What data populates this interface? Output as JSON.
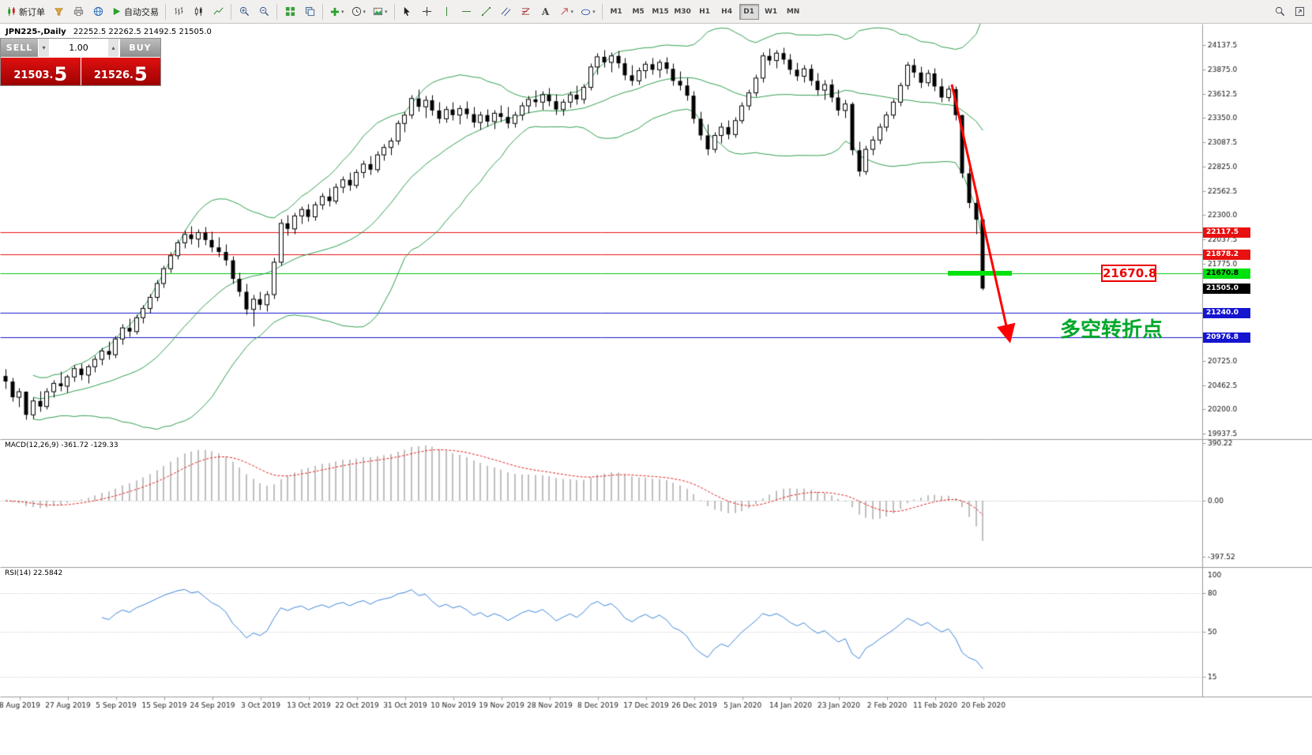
{
  "toolbar": {
    "new_order_label": "新订单",
    "autotrading_label": "自动交易",
    "timeframes": [
      "M1",
      "M5",
      "M15",
      "M30",
      "H1",
      "H4",
      "D1",
      "W1",
      "MN"
    ],
    "active_timeframe": "D1"
  },
  "chart": {
    "title": "JPN225-,Daily",
    "ohlc": "22252.5 22262.5 21492.5 21505.0"
  },
  "order_panel": {
    "sell_label": "SELL",
    "buy_label": "BUY",
    "volume": "1.00",
    "sell_price_base": "21503.",
    "sell_price_big": "5",
    "buy_price_base": "21526.",
    "buy_price_big": "5"
  },
  "annotations": {
    "level_label": "21670.8",
    "turning_point_text": "多空转折点"
  },
  "indicators": {
    "macd_name": "MACD(12,26,9)",
    "macd_values": "-361.72 -129.33",
    "rsi_name": "RSI(14)",
    "rsi_value": "22.5842"
  },
  "chart_data": {
    "type": "candlestick",
    "symbol": "JPN225-",
    "timeframe": "Daily",
    "ohlc_current": {
      "open": 22252.5,
      "high": 22262.5,
      "low": 21492.5,
      "close": 21505.0
    },
    "y_axis": {
      "top_price": 24137.5,
      "step": 262.5,
      "ticks": 17
    },
    "x_labels": [
      "8 Aug 2019",
      "27 Aug 2019",
      "5 Sep 2019",
      "15 Sep 2019",
      "24 Sep 2019",
      "3 Oct 2019",
      "13 Oct 2019",
      "22 Oct 2019",
      "31 Oct 2019",
      "10 Nov 2019",
      "19 Nov 2019",
      "28 Nov 2019",
      "8 Dec 2019",
      "17 Dec 2019",
      "26 Dec 2019",
      "5 Jan 2020",
      "14 Jan 2020",
      "23 Jan 2020",
      "2 Feb 2020",
      "11 Feb 2020",
      "20 Feb 2020"
    ],
    "bollinger": {
      "period": 20,
      "deviation": 2,
      "color": "#2f9e4f"
    },
    "macd": {
      "fast": 12,
      "slow": 26,
      "signal": 9,
      "histogram_color": "#bfbfbf",
      "signal_color": "#e02020",
      "scale_labels": [
        "390.22",
        "0.00",
        "-397.52"
      ]
    },
    "rsi": {
      "period": 14,
      "color": "#3d85d8",
      "levels": [
        80,
        50,
        15
      ],
      "scale_labels": [
        "100",
        "80",
        "50",
        "15"
      ]
    },
    "hlines": [
      {
        "price": 22117.5,
        "label": "22117.5",
        "color": "#e81010",
        "tag_bg": "#e81010",
        "tag_fg": "#ffffff"
      },
      {
        "price": 21878.2,
        "label": "21878.2",
        "color": "#e81010",
        "tag_bg": "#e81010",
        "tag_fg": "#ffffff"
      },
      {
        "price": 21670.8,
        "label": "21670.8",
        "color": "#00c510",
        "tag_bg": "#00e10e",
        "tag_fg": "#000000"
      },
      {
        "price": 21240.0,
        "label": "21240.0",
        "color": "#1515d0",
        "tag_bg": "#1515d0",
        "tag_fg": "#ffffff"
      },
      {
        "price": 20976.8,
        "label": "20976.8",
        "color": "#1515d0",
        "tag_bg": "#1515d0",
        "tag_fg": "#ffffff"
      }
    ],
    "current_price": {
      "price": 21505.0,
      "label": "21505.0",
      "tag_bg": "#000000",
      "tag_fg": "#ffffff"
    },
    "highlight_zone": {
      "price": 21670.8,
      "color": "#00e10e"
    },
    "trend_arrow": {
      "color": "#ff0000",
      "direction": "down"
    },
    "candles": [
      [
        20560,
        20640,
        20420,
        20500
      ],
      [
        20500,
        20540,
        20290,
        20330
      ],
      [
        20330,
        20430,
        20230,
        20390
      ],
      [
        20390,
        20400,
        20090,
        20140
      ],
      [
        20140,
        20330,
        20100,
        20290
      ],
      [
        20290,
        20400,
        20180,
        20230
      ],
      [
        20230,
        20430,
        20200,
        20390
      ],
      [
        20390,
        20520,
        20330,
        20480
      ],
      [
        20480,
        20610,
        20400,
        20450
      ],
      [
        20450,
        20580,
        20380,
        20550
      ],
      [
        20550,
        20680,
        20500,
        20640
      ],
      [
        20640,
        20700,
        20520,
        20570
      ],
      [
        20570,
        20690,
        20480,
        20660
      ],
      [
        20660,
        20780,
        20600,
        20740
      ],
      [
        20740,
        20870,
        20680,
        20830
      ],
      [
        20830,
        20940,
        20740,
        20790
      ],
      [
        20790,
        21000,
        20760,
        20960
      ],
      [
        20960,
        21120,
        20900,
        21080
      ],
      [
        21080,
        21180,
        20990,
        21040
      ],
      [
        21040,
        21230,
        21010,
        21190
      ],
      [
        21190,
        21330,
        21130,
        21290
      ],
      [
        21290,
        21450,
        21240,
        21410
      ],
      [
        21410,
        21600,
        21370,
        21560
      ],
      [
        21560,
        21760,
        21520,
        21720
      ],
      [
        21720,
        21900,
        21680,
        21860
      ],
      [
        21860,
        22040,
        21820,
        22000
      ],
      [
        22000,
        22140,
        21940,
        22090
      ],
      [
        22090,
        22180,
        21990,
        22040
      ],
      [
        22040,
        22150,
        21950,
        22110
      ],
      [
        22110,
        22170,
        21980,
        22030
      ],
      [
        22030,
        22120,
        21900,
        21950
      ],
      [
        21950,
        22060,
        21850,
        21900
      ],
      [
        21900,
        21990,
        21760,
        21810
      ],
      [
        21810,
        21860,
        21560,
        21610
      ],
      [
        21610,
        21680,
        21420,
        21470
      ],
      [
        21470,
        21560,
        21230,
        21280
      ],
      [
        21280,
        21440,
        21100,
        21390
      ],
      [
        21390,
        21470,
        21280,
        21330
      ],
      [
        21330,
        21480,
        21260,
        21440
      ],
      [
        21440,
        21840,
        21400,
        21790
      ],
      [
        21790,
        22260,
        21760,
        22210
      ],
      [
        22210,
        22300,
        22080,
        22150
      ],
      [
        22150,
        22330,
        22100,
        22290
      ],
      [
        22290,
        22400,
        22210,
        22360
      ],
      [
        22360,
        22420,
        22230,
        22280
      ],
      [
        22280,
        22450,
        22240,
        22410
      ],
      [
        22410,
        22540,
        22360,
        22500
      ],
      [
        22500,
        22590,
        22400,
        22450
      ],
      [
        22450,
        22640,
        22420,
        22600
      ],
      [
        22600,
        22720,
        22540,
        22680
      ],
      [
        22680,
        22760,
        22570,
        22620
      ],
      [
        22620,
        22800,
        22590,
        22760
      ],
      [
        22760,
        22890,
        22700,
        22850
      ],
      [
        22850,
        22940,
        22740,
        22790
      ],
      [
        22790,
        22990,
        22760,
        22950
      ],
      [
        22950,
        23070,
        22890,
        23030
      ],
      [
        23030,
        23140,
        22950,
        23100
      ],
      [
        23100,
        23330,
        23060,
        23290
      ],
      [
        23290,
        23420,
        23200,
        23380
      ],
      [
        23380,
        23600,
        23340,
        23560
      ],
      [
        23560,
        23660,
        23420,
        23470
      ],
      [
        23470,
        23590,
        23350,
        23540
      ],
      [
        23540,
        23600,
        23380,
        23430
      ],
      [
        23430,
        23520,
        23290,
        23340
      ],
      [
        23340,
        23480,
        23300,
        23440
      ],
      [
        23440,
        23520,
        23330,
        23380
      ],
      [
        23380,
        23490,
        23280,
        23450
      ],
      [
        23450,
        23530,
        23340,
        23390
      ],
      [
        23390,
        23470,
        23250,
        23300
      ],
      [
        23300,
        23420,
        23220,
        23380
      ],
      [
        23380,
        23450,
        23260,
        23310
      ],
      [
        23310,
        23440,
        23230,
        23400
      ],
      [
        23400,
        23490,
        23310,
        23360
      ],
      [
        23360,
        23470,
        23240,
        23290
      ],
      [
        23290,
        23420,
        23250,
        23380
      ],
      [
        23380,
        23520,
        23330,
        23480
      ],
      [
        23480,
        23590,
        23400,
        23550
      ],
      [
        23550,
        23650,
        23470,
        23520
      ],
      [
        23520,
        23640,
        23440,
        23600
      ],
      [
        23600,
        23680,
        23480,
        23530
      ],
      [
        23530,
        23610,
        23390,
        23440
      ],
      [
        23440,
        23560,
        23380,
        23520
      ],
      [
        23520,
        23640,
        23460,
        23600
      ],
      [
        23600,
        23700,
        23500,
        23550
      ],
      [
        23550,
        23720,
        23510,
        23680
      ],
      [
        23680,
        23940,
        23650,
        23900
      ],
      [
        23900,
        24050,
        23820,
        24010
      ],
      [
        24010,
        24090,
        23900,
        23950
      ],
      [
        23950,
        24060,
        23850,
        24020
      ],
      [
        24020,
        24080,
        23890,
        23940
      ],
      [
        23940,
        24000,
        23760,
        23810
      ],
      [
        23810,
        23920,
        23700,
        23750
      ],
      [
        23750,
        23900,
        23710,
        23860
      ],
      [
        23860,
        23970,
        23780,
        23930
      ],
      [
        23930,
        24000,
        23820,
        23870
      ],
      [
        23870,
        23980,
        23790,
        23950
      ],
      [
        23950,
        24010,
        23830,
        23880
      ],
      [
        23880,
        23940,
        23700,
        23750
      ],
      [
        23750,
        23860,
        23650,
        23700
      ],
      [
        23700,
        23790,
        23540,
        23590
      ],
      [
        23590,
        23640,
        23290,
        23340
      ],
      [
        23340,
        23420,
        23110,
        23160
      ],
      [
        23160,
        23280,
        22950,
        23010
      ],
      [
        23010,
        23200,
        22980,
        23160
      ],
      [
        23160,
        23300,
        23080,
        23250
      ],
      [
        23250,
        23330,
        23120,
        23170
      ],
      [
        23170,
        23360,
        23140,
        23320
      ],
      [
        23320,
        23520,
        23290,
        23480
      ],
      [
        23480,
        23660,
        23440,
        23620
      ],
      [
        23620,
        23820,
        23580,
        23780
      ],
      [
        23780,
        24060,
        23740,
        24020
      ],
      [
        24020,
        24100,
        23920,
        23970
      ],
      [
        23970,
        24090,
        23890,
        24050
      ],
      [
        24050,
        24110,
        23930,
        23980
      ],
      [
        23980,
        24040,
        23820,
        23870
      ],
      [
        23870,
        23950,
        23750,
        23800
      ],
      [
        23800,
        23920,
        23740,
        23880
      ],
      [
        23880,
        23930,
        23700,
        23750
      ],
      [
        23750,
        23840,
        23600,
        23650
      ],
      [
        23650,
        23760,
        23550,
        23710
      ],
      [
        23710,
        23770,
        23520,
        23570
      ],
      [
        23570,
        23660,
        23380,
        23430
      ],
      [
        23430,
        23550,
        23350,
        23500
      ],
      [
        23500,
        23520,
        22950,
        23000
      ],
      [
        23000,
        23100,
        22720,
        22770
      ],
      [
        22770,
        23050,
        22740,
        23010
      ],
      [
        23010,
        23160,
        22950,
        23110
      ],
      [
        23110,
        23290,
        23070,
        23250
      ],
      [
        23250,
        23420,
        23210,
        23380
      ],
      [
        23380,
        23560,
        23340,
        23520
      ],
      [
        23520,
        23740,
        23480,
        23700
      ],
      [
        23700,
        23960,
        23660,
        23920
      ],
      [
        23920,
        23990,
        23790,
        23840
      ],
      [
        23840,
        23910,
        23680,
        23730
      ],
      [
        23730,
        23870,
        23690,
        23830
      ],
      [
        23830,
        23890,
        23640,
        23690
      ],
      [
        23690,
        23780,
        23520,
        23570
      ],
      [
        23570,
        23700,
        23530,
        23660
      ],
      [
        23660,
        23690,
        23330,
        23380
      ],
      [
        23380,
        23390,
        22700,
        22750
      ],
      [
        22750,
        22820,
        22380,
        22430
      ],
      [
        22430,
        22500,
        22100,
        22250
      ],
      [
        22252.5,
        22262.5,
        21492.5,
        21505
      ]
    ]
  }
}
